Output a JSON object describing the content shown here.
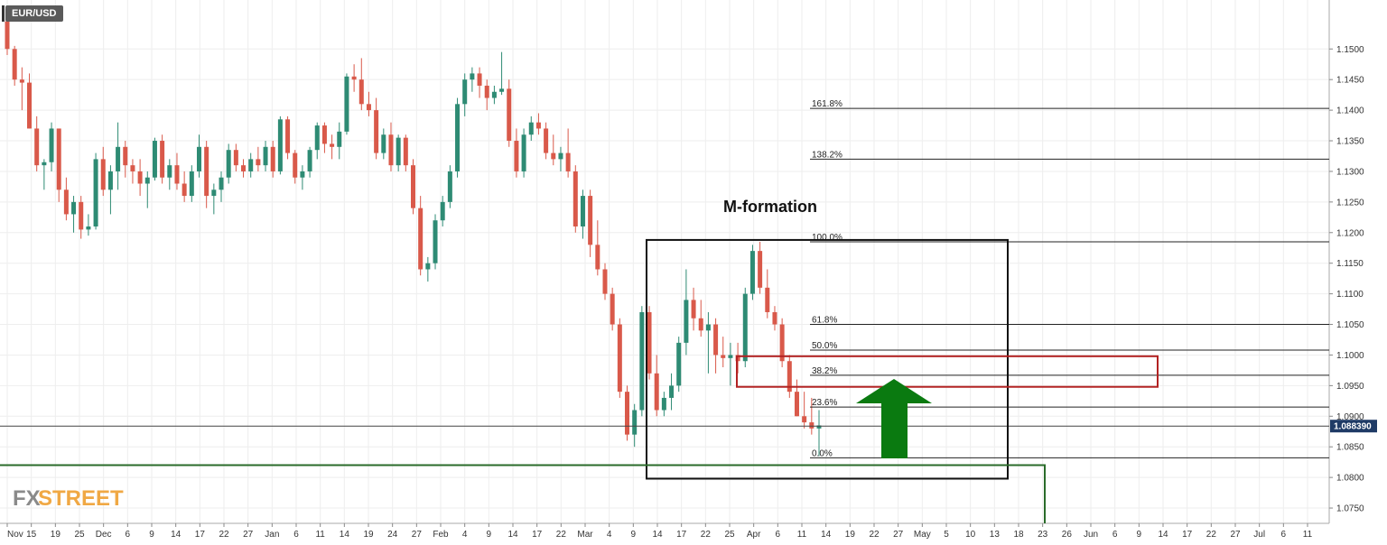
{
  "symbol": "EUR/USD",
  "logo": {
    "fx": "FX",
    "rest": "STREET"
  },
  "chart_data": {
    "type": "candlestick",
    "title": "M-formation",
    "ylim": [
      1.0725,
      1.158
    ],
    "y_ticks": [
      "1.1500",
      "1.1450",
      "1.1400",
      "1.1350",
      "1.1300",
      "1.1250",
      "1.1200",
      "1.1150",
      "1.1100",
      "1.1050",
      "1.1000",
      "1.0950",
      "1.0900",
      "1.0850",
      "1.0800",
      "1.0750"
    ],
    "x_ticks": [
      "Nov",
      "15",
      "19",
      "25",
      "Dec",
      "6",
      "9",
      "14",
      "17",
      "22",
      "27",
      "Jan",
      "6",
      "11",
      "14",
      "19",
      "24",
      "27",
      "Feb",
      "4",
      "9",
      "14",
      "17",
      "22",
      "Mar",
      "4",
      "9",
      "14",
      "17",
      "22",
      "25",
      "Apr",
      "6",
      "11",
      "14",
      "19",
      "22",
      "27",
      "May",
      "5",
      "10",
      "13",
      "18",
      "23",
      "26",
      "Jun",
      "6",
      "9",
      "14",
      "17",
      "22",
      "27",
      "Jul",
      "6",
      "11"
    ],
    "current_price": "1.088390",
    "current_price_value": 1.08839,
    "fib_levels": [
      {
        "label": "161.8%",
        "value": 1.1403
      },
      {
        "label": "138.2%",
        "value": 1.132
      },
      {
        "label": "100.0%",
        "value": 1.1185
      },
      {
        "label": "61.8%",
        "value": 1.105
      },
      {
        "label": "50.0%",
        "value": 1.1008
      },
      {
        "label": "38.2%",
        "value": 1.0967
      },
      {
        "label": "23.6%",
        "value": 1.0915
      },
      {
        "label": "0.0%",
        "value": 1.0832
      }
    ],
    "support_level": 1.082,
    "resistance_zone": [
      1.0948,
      1.0998
    ],
    "up_color": "#2e8b74",
    "down_color": "#d9594a",
    "candles": [
      [
        1.1545,
        1.156,
        1.149,
        1.15
      ],
      [
        1.15,
        1.1505,
        1.144,
        1.145
      ],
      [
        1.145,
        1.147,
        1.14,
        1.1445
      ],
      [
        1.1445,
        1.146,
        1.137,
        1.137
      ],
      [
        1.137,
        1.139,
        1.13,
        1.131
      ],
      [
        1.131,
        1.132,
        1.127,
        1.1315
      ],
      [
        1.1315,
        1.138,
        1.13,
        1.137
      ],
      [
        1.137,
        1.137,
        1.125,
        1.127
      ],
      [
        1.127,
        1.129,
        1.122,
        1.123
      ],
      [
        1.123,
        1.126,
        1.12,
        1.125
      ],
      [
        1.125,
        1.126,
        1.119,
        1.1205
      ],
      [
        1.1205,
        1.123,
        1.1195,
        1.121
      ],
      [
        1.121,
        1.133,
        1.1205,
        1.132
      ],
      [
        1.132,
        1.134,
        1.126,
        1.127
      ],
      [
        1.127,
        1.131,
        1.123,
        1.13
      ],
      [
        1.13,
        1.138,
        1.127,
        1.134
      ],
      [
        1.134,
        1.135,
        1.129,
        1.131
      ],
      [
        1.131,
        1.132,
        1.128,
        1.13
      ],
      [
        1.13,
        1.132,
        1.126,
        1.128
      ],
      [
        1.128,
        1.13,
        1.124,
        1.129
      ],
      [
        1.129,
        1.1355,
        1.1285,
        1.135
      ],
      [
        1.135,
        1.136,
        1.128,
        1.129
      ],
      [
        1.129,
        1.132,
        1.127,
        1.131
      ],
      [
        1.131,
        1.133,
        1.127,
        1.128
      ],
      [
        1.128,
        1.13,
        1.125,
        1.126
      ],
      [
        1.126,
        1.131,
        1.125,
        1.13
      ],
      [
        1.13,
        1.136,
        1.129,
        1.134
      ],
      [
        1.134,
        1.135,
        1.124,
        1.126
      ],
      [
        1.126,
        1.128,
        1.123,
        1.127
      ],
      [
        1.127,
        1.13,
        1.125,
        1.129
      ],
      [
        1.129,
        1.1345,
        1.128,
        1.1335
      ],
      [
        1.1335,
        1.1345,
        1.13,
        1.131
      ],
      [
        1.131,
        1.132,
        1.129,
        1.13
      ],
      [
        1.13,
        1.133,
        1.129,
        1.132
      ],
      [
        1.132,
        1.134,
        1.13,
        1.131
      ],
      [
        1.131,
        1.135,
        1.13,
        1.134
      ],
      [
        1.134,
        1.135,
        1.129,
        1.13
      ],
      [
        1.13,
        1.139,
        1.1295,
        1.1385
      ],
      [
        1.1385,
        1.139,
        1.132,
        1.133
      ],
      [
        1.133,
        1.1335,
        1.128,
        1.129
      ],
      [
        1.129,
        1.131,
        1.127,
        1.13
      ],
      [
        1.13,
        1.134,
        1.129,
        1.1335
      ],
      [
        1.1335,
        1.138,
        1.132,
        1.1375
      ],
      [
        1.1375,
        1.138,
        1.133,
        1.1345
      ],
      [
        1.1345,
        1.136,
        1.132,
        1.134
      ],
      [
        1.134,
        1.138,
        1.132,
        1.1365
      ],
      [
        1.1365,
        1.146,
        1.136,
        1.1455
      ],
      [
        1.1455,
        1.1475,
        1.143,
        1.145
      ],
      [
        1.145,
        1.1485,
        1.14,
        1.141
      ],
      [
        1.141,
        1.143,
        1.139,
        1.14
      ],
      [
        1.14,
        1.142,
        1.132,
        1.133
      ],
      [
        1.133,
        1.137,
        1.132,
        1.136
      ],
      [
        1.136,
        1.138,
        1.13,
        1.131
      ],
      [
        1.131,
        1.136,
        1.13,
        1.1355
      ],
      [
        1.1355,
        1.136,
        1.13,
        1.131
      ],
      [
        1.131,
        1.132,
        1.123,
        1.124
      ],
      [
        1.124,
        1.126,
        1.113,
        1.114
      ],
      [
        1.114,
        1.116,
        1.112,
        1.115
      ],
      [
        1.115,
        1.123,
        1.114,
        1.122
      ],
      [
        1.122,
        1.126,
        1.121,
        1.125
      ],
      [
        1.125,
        1.131,
        1.124,
        1.13
      ],
      [
        1.13,
        1.142,
        1.129,
        1.141
      ],
      [
        1.141,
        1.146,
        1.139,
        1.145
      ],
      [
        1.145,
        1.147,
        1.143,
        1.146
      ],
      [
        1.146,
        1.147,
        1.142,
        1.144
      ],
      [
        1.144,
        1.145,
        1.14,
        1.142
      ],
      [
        1.142,
        1.144,
        1.141,
        1.143
      ],
      [
        1.143,
        1.1495,
        1.1425,
        1.1435
      ],
      [
        1.1435,
        1.145,
        1.134,
        1.135
      ],
      [
        1.135,
        1.137,
        1.129,
        1.13
      ],
      [
        1.13,
        1.137,
        1.129,
        1.136
      ],
      [
        1.136,
        1.139,
        1.135,
        1.138
      ],
      [
        1.138,
        1.1395,
        1.136,
        1.137
      ],
      [
        1.137,
        1.138,
        1.132,
        1.133
      ],
      [
        1.133,
        1.136,
        1.131,
        1.132
      ],
      [
        1.132,
        1.134,
        1.13,
        1.133
      ],
      [
        1.133,
        1.137,
        1.129,
        1.13
      ],
      [
        1.13,
        1.131,
        1.12,
        1.121
      ],
      [
        1.121,
        1.127,
        1.119,
        1.126
      ],
      [
        1.126,
        1.127,
        1.116,
        1.118
      ],
      [
        1.118,
        1.122,
        1.113,
        1.114
      ],
      [
        1.114,
        1.115,
        1.109,
        1.11
      ],
      [
        1.11,
        1.111,
        1.104,
        1.105
      ],
      [
        1.105,
        1.106,
        1.093,
        1.094
      ],
      [
        1.094,
        1.095,
        1.086,
        1.087
      ],
      [
        1.087,
        1.092,
        1.085,
        1.091
      ],
      [
        1.091,
        1.108,
        1.09,
        1.107
      ],
      [
        1.107,
        1.108,
        1.096,
        1.097
      ],
      [
        1.097,
        1.1,
        1.09,
        1.091
      ],
      [
        1.091,
        1.094,
        1.09,
        1.093
      ],
      [
        1.093,
        1.097,
        1.091,
        1.095
      ],
      [
        1.095,
        1.103,
        1.094,
        1.102
      ],
      [
        1.102,
        1.114,
        1.1,
        1.109
      ],
      [
        1.109,
        1.111,
        1.104,
        1.106
      ],
      [
        1.106,
        1.109,
        1.103,
        1.104
      ],
      [
        1.104,
        1.107,
        1.097,
        1.105
      ],
      [
        1.105,
        1.106,
        1.097,
        1.1
      ],
      [
        1.1,
        1.103,
        1.098,
        1.0995
      ],
      [
        1.0995,
        1.102,
        1.095,
        1.1
      ],
      [
        1.1,
        1.102,
        1.097,
        1.099
      ],
      [
        1.099,
        1.111,
        1.098,
        1.11
      ],
      [
        1.11,
        1.118,
        1.109,
        1.117
      ],
      [
        1.117,
        1.1185,
        1.11,
        1.111
      ],
      [
        1.111,
        1.114,
        1.106,
        1.107
      ],
      [
        1.107,
        1.108,
        1.104,
        1.105
      ],
      [
        1.105,
        1.106,
        1.098,
        1.099
      ],
      [
        1.099,
        1.1,
        1.093,
        1.094
      ],
      [
        1.094,
        1.096,
        1.09,
        1.09
      ],
      [
        1.09,
        1.094,
        1.088,
        1.089
      ],
      [
        1.089,
        1.093,
        1.087,
        1.088
      ],
      [
        1.088,
        1.091,
        1.0835,
        1.0885
      ]
    ]
  }
}
